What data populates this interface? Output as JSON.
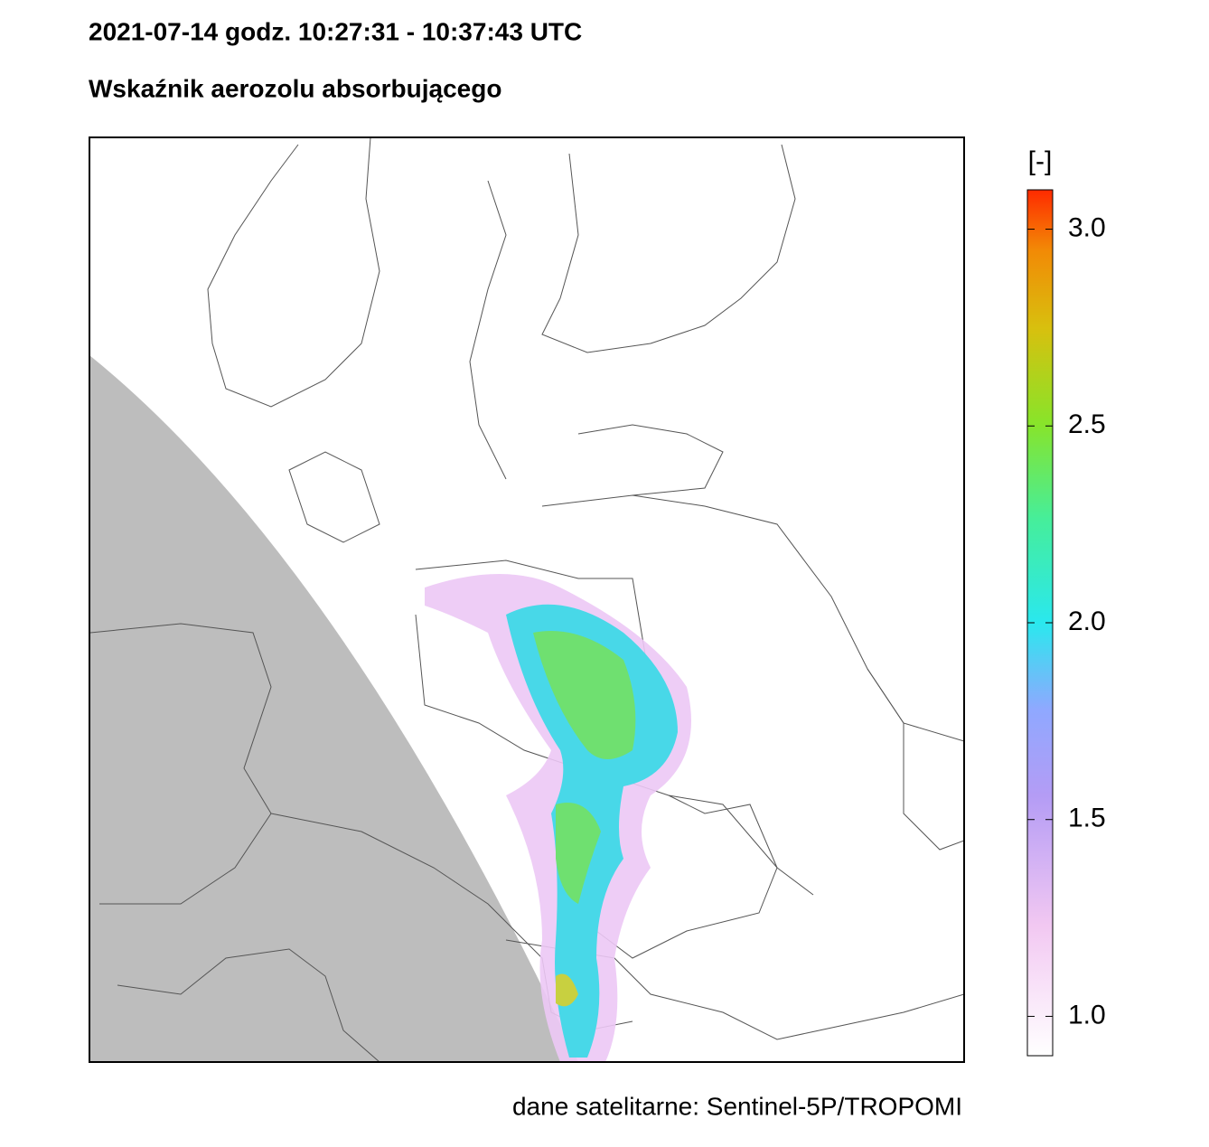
{
  "title": "2021-07-14   godz.  10:27:31 - 10:37:43  UTC",
  "subtitle": "Wskaźnik aerozolu absorbującego",
  "colorbar": {
    "label": "[-]",
    "lim": [
      0.9,
      3.1
    ],
    "ticks": [
      {
        "value": 1,
        "label": "1.0"
      },
      {
        "value": 1.5,
        "label": "1.5"
      },
      {
        "value": 2,
        "label": "2.0"
      },
      {
        "value": 2.5,
        "label": "2.5"
      },
      {
        "value": 3,
        "label": "3.0"
      }
    ]
  },
  "source": "dane satelitarne: Sentinel-5P/TROPOMI"
}
